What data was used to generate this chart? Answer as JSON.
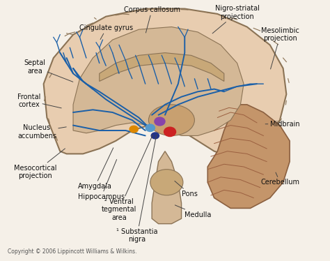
{
  "bg_color": "#f5f0e8",
  "brain_fill": "#e8cdb0",
  "brain_stroke": "#8b7355",
  "cerebellum_fill": "#c4956a",
  "cerebellum_stroke": "#8b6040",
  "blue_line_color": "#1a5fa8",
  "red_dot_color": "#cc2222",
  "purple_dot_color": "#8844aa",
  "orange_dot_color": "#dd8800",
  "light_blue_dot_color": "#5599cc",
  "dark_blue_dot_color": "#223388",
  "copyright": "Copyright © 2006 Lippincott Williams & Wilkins.",
  "labels": {
    "Corpus callosum": [
      0.46,
      0.965,
      0.44,
      0.87,
      "center"
    ],
    "Nigro-striatal\nprojection": [
      0.72,
      0.955,
      0.64,
      0.87,
      "center"
    ],
    "Mesolimbic\nprojection": [
      0.91,
      0.87,
      0.82,
      0.73,
      "right"
    ],
    "Cingulate gyrus": [
      0.24,
      0.895,
      0.3,
      0.845,
      "left"
    ],
    "Septal\narea": [
      0.07,
      0.745,
      0.225,
      0.685,
      "left"
    ],
    "Frontal\ncortex": [
      0.05,
      0.615,
      0.19,
      0.585,
      "left"
    ],
    "Nucleus\naccumbens": [
      0.05,
      0.495,
      0.205,
      0.515,
      "left"
    ],
    "Mesocortical\nprojection": [
      0.04,
      0.34,
      0.2,
      0.435,
      "left"
    ],
    "Amygdala": [
      0.235,
      0.285,
      0.345,
      0.44,
      "left"
    ],
    "Hippocampus": [
      0.235,
      0.245,
      0.355,
      0.395,
      "left"
    ],
    "² Ventral\ntegmental\narea": [
      0.36,
      0.195,
      0.465,
      0.49,
      "center"
    ],
    "Pons": [
      0.575,
      0.255,
      0.525,
      0.31,
      "center"
    ],
    "Medulla": [
      0.6,
      0.175,
      0.525,
      0.215,
      "center"
    ],
    "¹ Substantia\nnigra": [
      0.415,
      0.095,
      0.475,
      0.49,
      "center"
    ],
    "Midbrain": [
      0.91,
      0.525,
      0.8,
      0.525,
      "right"
    ],
    "Cerebellum": [
      0.91,
      0.3,
      0.835,
      0.345,
      "right"
    ]
  }
}
